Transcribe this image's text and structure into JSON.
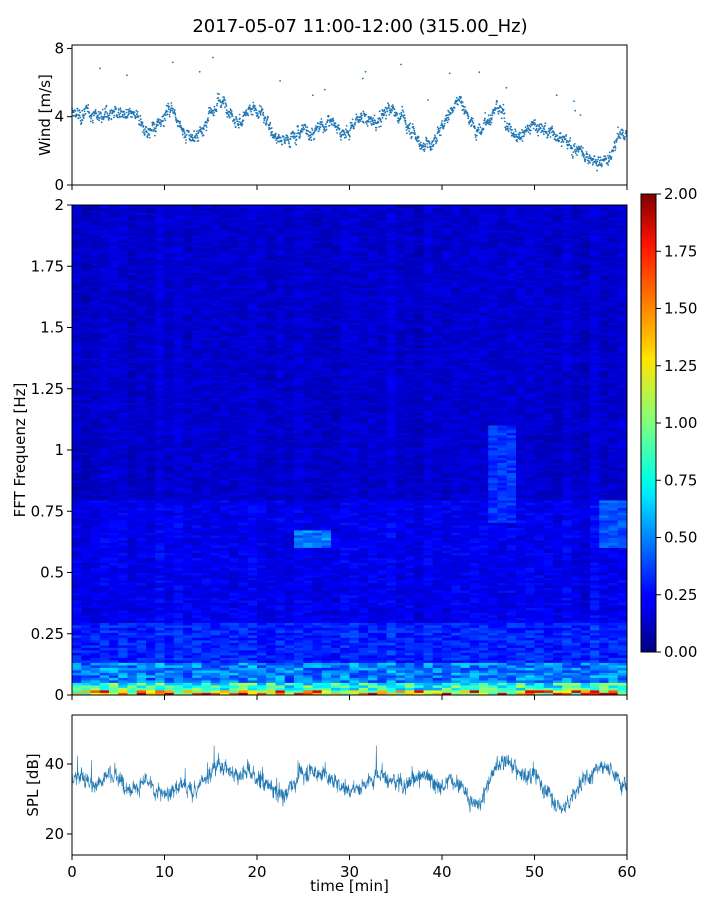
{
  "figure": {
    "title": "2017-05-07 11:00-12:00 (315.00_Hz)"
  },
  "chart_data": [
    {
      "id": "wind",
      "type": "scatter",
      "ylabel": "Wind [m/s]",
      "xlabel": "",
      "xlim": [
        0,
        60
      ],
      "ylim": [
        0,
        8.2
      ],
      "yticks": [
        0,
        4,
        8
      ],
      "ytick_labels": [
        "0",
        "4",
        "8"
      ],
      "color": "#1f77b4",
      "trend": {
        "x": [
          0,
          1,
          2,
          3,
          4,
          5,
          6,
          7,
          8,
          9,
          10,
          11,
          12,
          13,
          14,
          15,
          16,
          17,
          18,
          19,
          20,
          21,
          22,
          23,
          24,
          25,
          26,
          27,
          28,
          29,
          30,
          31,
          32,
          33,
          34,
          35,
          36,
          37,
          38,
          39,
          40,
          41,
          42,
          43,
          44,
          45,
          46,
          47,
          48,
          49,
          50,
          51,
          52,
          53,
          54,
          55,
          56,
          57,
          58,
          59,
          60
        ],
        "y": [
          4.2,
          4.0,
          4.3,
          4.0,
          4.2,
          4.3,
          3.9,
          4.0,
          3.3,
          3.2,
          4.2,
          4.6,
          3.0,
          2.7,
          3.3,
          4.2,
          5.0,
          4.5,
          3.6,
          4.2,
          4.3,
          3.8,
          2.9,
          2.6,
          2.8,
          3.3,
          3.2,
          3.4,
          3.8,
          3.2,
          3.0,
          4.1,
          3.8,
          3.5,
          4.5,
          4.3,
          3.6,
          3.0,
          2.2,
          2.5,
          3.5,
          4.5,
          5.0,
          3.8,
          3.2,
          3.8,
          4.5,
          3.5,
          2.8,
          3.2,
          3.5,
          3.2,
          3.0,
          2.8,
          2.2,
          2.0,
          1.5,
          1.3,
          1.5,
          2.8,
          3.0
        ]
      },
      "noise": 0.6,
      "points_per_min": 30
    },
    {
      "id": "spectrogram",
      "type": "heatmap",
      "xlabel": "",
      "ylabel": "FFT Frequenz [Hz]",
      "xlim": [
        0,
        60
      ],
      "ylim": [
        0,
        2
      ],
      "yticks": [
        0,
        0.25,
        0.5,
        0.75,
        1,
        1.25,
        1.5,
        1.75,
        2
      ],
      "ytick_labels": [
        "0",
        "0.25",
        "0.5",
        "0.75",
        "1",
        "1.25",
        "1.5",
        "1.75",
        "2"
      ],
      "colormap": "jet",
      "colorbar": {
        "vmin": 0,
        "vmax": 2,
        "ticks": [
          0,
          0.25,
          0.5,
          0.75,
          1,
          1.25,
          1.5,
          1.75,
          2
        ],
        "tick_labels": [
          "0.00",
          "0.25",
          "0.50",
          "0.75",
          "1.00",
          "1.25",
          "1.50",
          "1.75",
          "2.00"
        ]
      },
      "hotspots": [
        {
          "t": [
            24.5,
            27.5
          ],
          "f": [
            0.6,
            0.67
          ],
          "value": 0.55
        },
        {
          "t": [
            45.5,
            48.0
          ],
          "f": [
            0.7,
            1.1
          ],
          "value": 0.38
        },
        {
          "t": [
            57.0,
            60.0
          ],
          "f": [
            0.6,
            0.8
          ],
          "value": 0.45
        }
      ]
    },
    {
      "id": "spl",
      "type": "line",
      "xlabel": "time [min]",
      "ylabel": "SPL [dB]",
      "xlim": [
        0,
        60
      ],
      "ylim": [
        14,
        54
      ],
      "yticks": [
        20,
        40
      ],
      "ytick_labels": [
        "20",
        "40"
      ],
      "xticks": [
        0,
        10,
        20,
        30,
        40,
        50,
        60
      ],
      "xtick_labels": [
        "0",
        "10",
        "20",
        "30",
        "40",
        "50",
        "60"
      ],
      "color": "#1f77b4",
      "trend": {
        "x": [
          0,
          1,
          2,
          3,
          4,
          5,
          6,
          7,
          8,
          9,
          10,
          11,
          12,
          13,
          14,
          15,
          16,
          17,
          18,
          19,
          20,
          21,
          22,
          23,
          24,
          25,
          26,
          27,
          28,
          29,
          30,
          31,
          32,
          33,
          34,
          35,
          36,
          37,
          38,
          39,
          40,
          41,
          42,
          43,
          44,
          45,
          46,
          47,
          48,
          49,
          50,
          51,
          52,
          53,
          54,
          55,
          56,
          57,
          58,
          59,
          60
        ],
        "y": [
          36,
          37,
          34,
          35,
          38,
          36,
          34,
          33,
          35,
          32,
          31,
          33,
          34,
          32,
          35,
          38,
          40,
          38,
          37,
          38,
          36,
          34,
          32,
          31,
          35,
          37,
          38,
          37,
          36,
          34,
          33,
          33,
          35,
          38,
          36,
          34,
          33,
          36,
          37,
          35,
          33,
          36,
          34,
          30,
          28,
          35,
          40,
          41,
          38,
          36,
          38,
          33,
          30,
          27,
          30,
          35,
          37,
          40,
          39,
          36,
          34
        ]
      },
      "noise": 3.2
    }
  ]
}
